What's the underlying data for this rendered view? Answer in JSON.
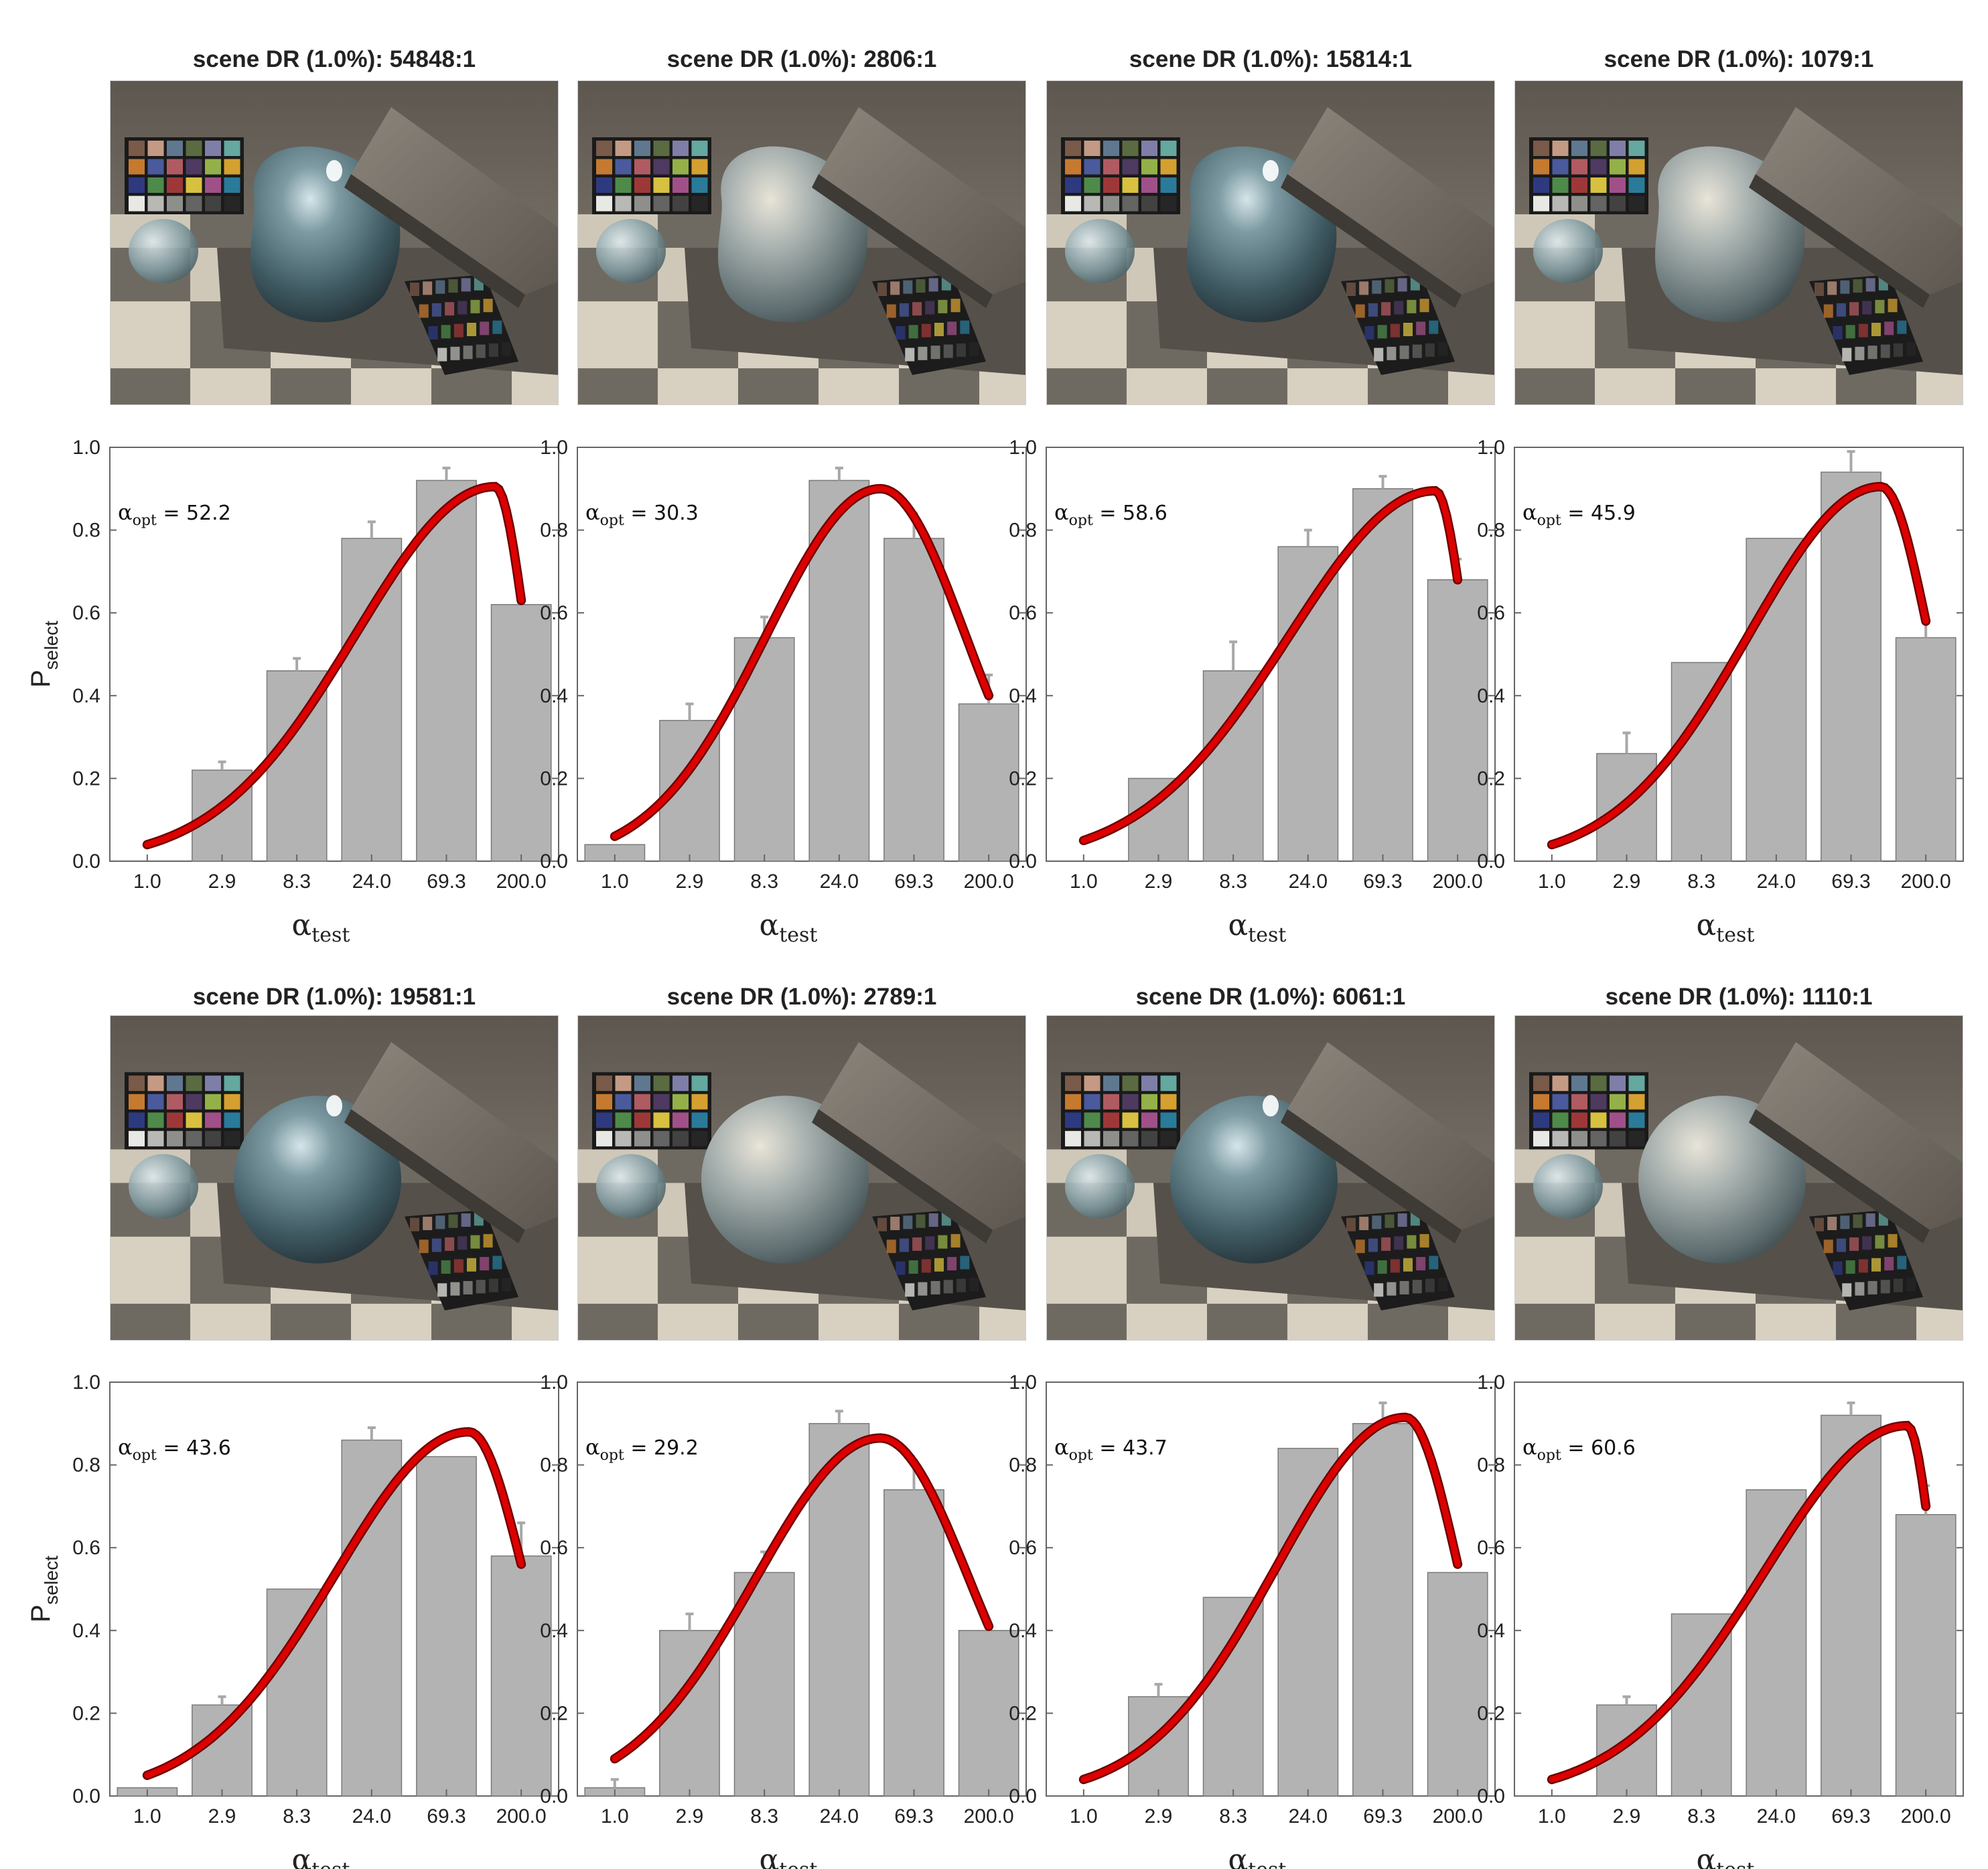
{
  "figure": {
    "y_axis_label": "P",
    "y_axis_label_sub": "select",
    "x_axis_label": "α",
    "x_axis_label_sub": "test",
    "annotation_symbol": "α",
    "annotation_sub": "opt",
    "colors": {
      "bar_fill": "#b3b3b3",
      "bar_stroke": "#7a7a7a",
      "error_bar": "#a8a8a8",
      "fit_curve": "#dd0000",
      "fit_curve_edge": "#6b0000",
      "axis": "#666666"
    }
  },
  "chart_data": [
    {
      "type": "bar",
      "title": "scene DR (1.0%): 54848:1",
      "categories": [
        "1.0",
        "2.9",
        "8.3",
        "24.0",
        "69.3",
        "200.0"
      ],
      "values": [
        0.0,
        0.22,
        0.46,
        0.78,
        0.92,
        0.62
      ],
      "errors": [
        0.0,
        0.02,
        0.03,
        0.04,
        0.03,
        0.02
      ],
      "alpha_opt": "52.2",
      "fit": {
        "peak_x": 4.65,
        "peak_y": 0.905,
        "end_y": 0.63,
        "start_y": 0.04
      },
      "yticks": [
        "0.0",
        "0.2",
        "0.4",
        "0.6",
        "0.8",
        "1.0"
      ],
      "ylim": [
        0,
        1
      ],
      "show_ylabel": true,
      "image_variant": "blob-glossy"
    },
    {
      "type": "bar",
      "title": "scene DR (1.0%): 2806:1",
      "categories": [
        "1.0",
        "2.9",
        "8.3",
        "24.0",
        "69.3",
        "200.0"
      ],
      "values": [
        0.04,
        0.34,
        0.54,
        0.92,
        0.78,
        0.38
      ],
      "errors": [
        0.0,
        0.04,
        0.05,
        0.03,
        0.06,
        0.07
      ],
      "alpha_opt": "30.3",
      "fit": {
        "peak_x": 3.55,
        "peak_y": 0.9,
        "end_y": 0.4,
        "start_y": 0.06
      },
      "yticks": [
        "0.0",
        "0.2",
        "0.4",
        "0.6",
        "0.8",
        "1.0"
      ],
      "ylim": [
        0,
        1
      ],
      "show_ylabel": false,
      "image_variant": "blob-matte"
    },
    {
      "type": "bar",
      "title": "scene DR (1.0%): 15814:1",
      "categories": [
        "1.0",
        "2.9",
        "8.3",
        "24.0",
        "69.3",
        "200.0"
      ],
      "values": [
        0.0,
        0.2,
        0.46,
        0.76,
        0.9,
        0.68
      ],
      "errors": [
        0.0,
        0.0,
        0.07,
        0.04,
        0.03,
        0.05
      ],
      "alpha_opt": "58.6",
      "fit": {
        "peak_x": 4.7,
        "peak_y": 0.895,
        "end_y": 0.68,
        "start_y": 0.05
      },
      "yticks": [
        "0.0",
        "0.2",
        "0.4",
        "0.6",
        "0.8",
        "1.0"
      ],
      "ylim": [
        0,
        1
      ],
      "show_ylabel": false,
      "image_variant": "blob-glossy"
    },
    {
      "type": "bar",
      "title": "scene DR (1.0%): 1079:1",
      "categories": [
        "1.0",
        "2.9",
        "8.3",
        "24.0",
        "69.3",
        "200.0"
      ],
      "values": [
        0.0,
        0.26,
        0.48,
        0.78,
        0.94,
        0.54
      ],
      "errors": [
        0.0,
        0.05,
        0.0,
        0.0,
        0.05,
        0.04
      ],
      "alpha_opt": "45.9",
      "fit": {
        "peak_x": 4.4,
        "peak_y": 0.905,
        "end_y": 0.58,
        "start_y": 0.04
      },
      "yticks": [
        "0.0",
        "0.2",
        "0.4",
        "0.6",
        "0.8",
        "1.0"
      ],
      "ylim": [
        0,
        1
      ],
      "show_ylabel": false,
      "image_variant": "blob-matte"
    },
    {
      "type": "bar",
      "title": "scene DR (1.0%): 19581:1",
      "categories": [
        "1.0",
        "2.9",
        "8.3",
        "24.0",
        "69.3",
        "200.0"
      ],
      "values": [
        0.02,
        0.22,
        0.5,
        0.86,
        0.82,
        0.58
      ],
      "errors": [
        0.0,
        0.02,
        0.0,
        0.03,
        0.0,
        0.08
      ],
      "alpha_opt": "43.6",
      "fit": {
        "peak_x": 4.3,
        "peak_y": 0.88,
        "end_y": 0.56,
        "start_y": 0.05
      },
      "yticks": [
        "0.0",
        "0.2",
        "0.4",
        "0.6",
        "0.8",
        "1.0"
      ],
      "ylim": [
        0,
        1
      ],
      "show_ylabel": true,
      "image_variant": "sphere-glossy"
    },
    {
      "type": "bar",
      "title": "scene DR (1.0%): 2789:1",
      "categories": [
        "1.0",
        "2.9",
        "8.3",
        "24.0",
        "69.3",
        "200.0"
      ],
      "values": [
        0.02,
        0.4,
        0.54,
        0.9,
        0.74,
        0.4
      ],
      "errors": [
        0.02,
        0.04,
        0.05,
        0.03,
        0.07,
        0.0
      ],
      "alpha_opt": "29.2",
      "fit": {
        "peak_x": 3.55,
        "peak_y": 0.865,
        "end_y": 0.41,
        "start_y": 0.09
      },
      "yticks": [
        "0.0",
        "0.2",
        "0.4",
        "0.6",
        "0.8",
        "1.0"
      ],
      "ylim": [
        0,
        1
      ],
      "show_ylabel": false,
      "image_variant": "sphere-matte"
    },
    {
      "type": "bar",
      "title": "scene DR (1.0%): 6061:1",
      "categories": [
        "1.0",
        "2.9",
        "8.3",
        "24.0",
        "69.3",
        "200.0"
      ],
      "values": [
        0.0,
        0.24,
        0.48,
        0.84,
        0.9,
        0.54
      ],
      "errors": [
        0.0,
        0.03,
        0.0,
        0.0,
        0.05,
        0.0
      ],
      "alpha_opt": "43.7",
      "fit": {
        "peak_x": 4.3,
        "peak_y": 0.915,
        "end_y": 0.56,
        "start_y": 0.04
      },
      "yticks": [
        "0.0",
        "0.2",
        "0.4",
        "0.6",
        "0.8",
        "1.0"
      ],
      "ylim": [
        0,
        1
      ],
      "show_ylabel": false,
      "image_variant": "sphere-glossy"
    },
    {
      "type": "bar",
      "title": "scene DR (1.0%): 1110:1",
      "categories": [
        "1.0",
        "2.9",
        "8.3",
        "24.0",
        "69.3",
        "200.0"
      ],
      "values": [
        0.0,
        0.22,
        0.44,
        0.74,
        0.92,
        0.68
      ],
      "errors": [
        0.0,
        0.02,
        0.0,
        0.0,
        0.03,
        0.07
      ],
      "alpha_opt": "60.6",
      "fit": {
        "peak_x": 4.75,
        "peak_y": 0.895,
        "end_y": 0.7,
        "start_y": 0.04
      },
      "yticks": [
        "0.0",
        "0.2",
        "0.4",
        "0.6",
        "0.8",
        "1.0"
      ],
      "ylim": [
        0,
        1
      ],
      "show_ylabel": false,
      "image_variant": "sphere-matte"
    }
  ]
}
